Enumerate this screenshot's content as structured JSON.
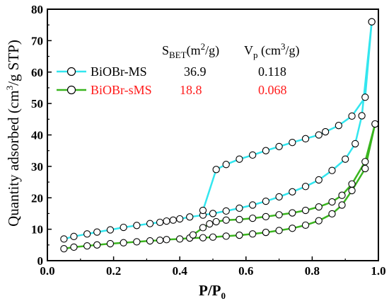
{
  "chart_data": {
    "type": "scatter",
    "xlabel": {
      "main": "P/P",
      "sub": "0"
    },
    "ylabel": {
      "main": "Quantity adsorbed (cm",
      "sup": "3",
      "rest": "/g STP)"
    },
    "xlim": [
      0.0,
      1.0
    ],
    "ylim": [
      0,
      80
    ],
    "x_ticks": [
      0.0,
      0.2,
      0.4,
      0.6,
      0.8,
      1.0
    ],
    "x_tick_labels": [
      "0.0",
      "0.2",
      "0.4",
      "0.6",
      "0.8",
      "1.0"
    ],
    "y_ticks": [
      0,
      10,
      20,
      30,
      40,
      50,
      60,
      70,
      80
    ],
    "y_tick_labels": [
      "0",
      "10",
      "20",
      "30",
      "40",
      "50",
      "60",
      "70",
      "80"
    ],
    "grid": false,
    "legend_position": "top-left",
    "table_header": {
      "sbet": {
        "main": "S",
        "sub": "BET",
        "rest": "(m",
        "sup": "2",
        "end": "/g)"
      },
      "vp": {
        "main": "V",
        "sub": "p",
        "rest": " (cm",
        "sup": "3",
        "end": "/g)"
      }
    },
    "series": [
      {
        "name": "BiOBr-MS",
        "color": "#33e6ef",
        "label_color": "#000000",
        "sbet": "36.9",
        "vp": "0.118",
        "adsorption": {
          "x": [
            0.05,
            0.08,
            0.12,
            0.15,
            0.19,
            0.23,
            0.27,
            0.31,
            0.34,
            0.36,
            0.38,
            0.4,
            0.43,
            0.47,
            0.5,
            0.54,
            0.58,
            0.62,
            0.66,
            0.7,
            0.74,
            0.78,
            0.82,
            0.86,
            0.9,
            0.93,
            0.95,
            0.98
          ],
          "y": [
            6.9,
            7.7,
            8.5,
            9.1,
            9.8,
            10.6,
            11.2,
            11.8,
            12.2,
            12.6,
            12.9,
            13.3,
            13.9,
            14.5,
            15.0,
            15.8,
            16.7,
            17.7,
            18.9,
            20.3,
            21.9,
            23.6,
            25.7,
            28.7,
            32.3,
            37.2,
            46.1,
            76.0
          ]
        },
        "desorption": {
          "x": [
            0.98,
            0.96,
            0.92,
            0.88,
            0.84,
            0.82,
            0.78,
            0.74,
            0.7,
            0.66,
            0.62,
            0.58,
            0.54,
            0.51,
            0.47
          ],
          "y": [
            76.0,
            52.0,
            46.0,
            43.0,
            41.0,
            40.0,
            38.8,
            37.6,
            36.3,
            35.0,
            33.6,
            32.3,
            30.6,
            29.0,
            16.0
          ]
        }
      },
      {
        "name": "BiOBr-sMS",
        "color": "#3ab51f",
        "label_color": "#ff1a1a",
        "sbet": "18.8",
        "vp": "0.068",
        "adsorption": {
          "x": [
            0.05,
            0.08,
            0.12,
            0.15,
            0.19,
            0.23,
            0.27,
            0.31,
            0.34,
            0.36,
            0.4,
            0.43,
            0.47,
            0.5,
            0.54,
            0.58,
            0.62,
            0.66,
            0.7,
            0.74,
            0.78,
            0.82,
            0.86,
            0.89,
            0.92,
            0.96,
            0.99
          ],
          "y": [
            3.8,
            4.3,
            4.7,
            5.0,
            5.4,
            5.7,
            6.0,
            6.3,
            6.5,
            6.7,
            6.9,
            7.2,
            7.3,
            7.5,
            7.8,
            8.1,
            8.5,
            9.0,
            9.6,
            10.3,
            11.3,
            12.7,
            14.9,
            17.7,
            22.3,
            29.3,
            43.5
          ]
        },
        "desorption": {
          "x": [
            0.99,
            0.96,
            0.92,
            0.89,
            0.86,
            0.82,
            0.78,
            0.74,
            0.7,
            0.66,
            0.62,
            0.58,
            0.54,
            0.51,
            0.49,
            0.47,
            0.44
          ],
          "y": [
            43.5,
            31.5,
            24.4,
            20.8,
            18.7,
            17.1,
            16.0,
            15.2,
            14.6,
            14.0,
            13.5,
            13.1,
            12.9,
            12.4,
            11.7,
            10.5,
            8.2
          ]
        }
      }
    ]
  }
}
